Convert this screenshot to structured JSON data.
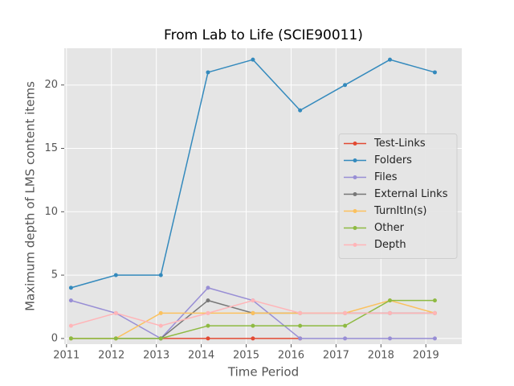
{
  "chart_data": {
    "type": "line",
    "title": "From Lab to Life (SCIE90011)",
    "x_label": "Time Period",
    "y_label": "Maximum depth of LMS content items",
    "x": [
      2011.1,
      2012.1,
      2013.1,
      2014.15,
      2015.15,
      2016.2,
      2017.2,
      2018.2,
      2019.2
    ],
    "series": [
      {
        "name": "Test-Links",
        "color": "#E24A33",
        "values": [
          null,
          null,
          0,
          0,
          0,
          0,
          null,
          null,
          null
        ]
      },
      {
        "name": "Folders",
        "color": "#348ABD",
        "values": [
          4,
          5,
          5,
          21,
          22,
          18,
          20,
          22,
          21
        ]
      },
      {
        "name": "Files",
        "color": "#988ED5",
        "values": [
          3,
          2,
          0,
          4,
          3,
          0,
          0,
          0,
          0
        ]
      },
      {
        "name": "External Links",
        "color": "#777777",
        "values": [
          0,
          0,
          0,
          3,
          2,
          2,
          2,
          2,
          2
        ]
      },
      {
        "name": "TurnItIn(s)",
        "color": "#FBC15E",
        "values": [
          0,
          0,
          2,
          2,
          2,
          2,
          2,
          3,
          2
        ]
      },
      {
        "name": "Other",
        "color": "#8EBA42",
        "values": [
          0,
          0,
          0,
          1,
          1,
          1,
          1,
          3,
          3
        ]
      },
      {
        "name": "Depth",
        "color": "#FFB5B8",
        "values": [
          1,
          2,
          1,
          2,
          3,
          2,
          2,
          2,
          2
        ]
      }
    ],
    "xlim": [
      2010.95,
      2019.8
    ],
    "xticks": [
      2011,
      2012,
      2013,
      2014,
      2015,
      2016,
      2017,
      2018,
      2019
    ],
    "ylim": [
      -0.45,
      22.9
    ],
    "yticks": [
      0,
      5,
      10,
      15,
      20
    ],
    "grid": true,
    "legend": "center right"
  }
}
